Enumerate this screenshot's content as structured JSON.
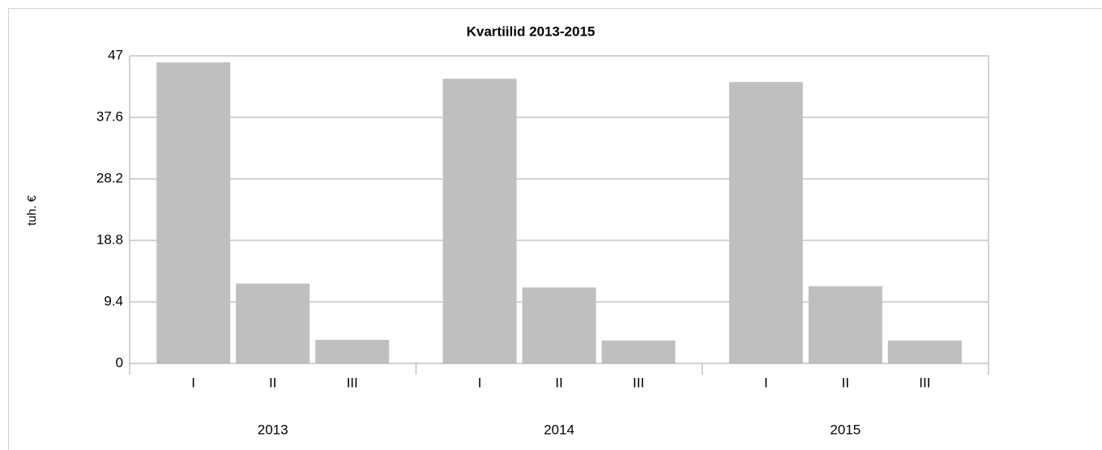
{
  "chart_data": {
    "type": "bar",
    "title": "Kvartiilid 2013-2015",
    "y_label": "tuh. €",
    "groups": [
      "2013",
      "2014",
      "2015"
    ],
    "categories": [
      "I",
      "II",
      "III",
      "I",
      "II",
      "III",
      "I",
      "II",
      "III"
    ],
    "values": [
      46.0,
      12.2,
      3.6,
      43.5,
      11.6,
      3.5,
      43.0,
      11.8,
      3.5
    ],
    "color": "#bfbfbf",
    "ylim": [
      0,
      47
    ],
    "yticks": [
      0,
      9.4,
      18.8,
      28.2,
      37.6,
      47
    ],
    "grid": true
  }
}
